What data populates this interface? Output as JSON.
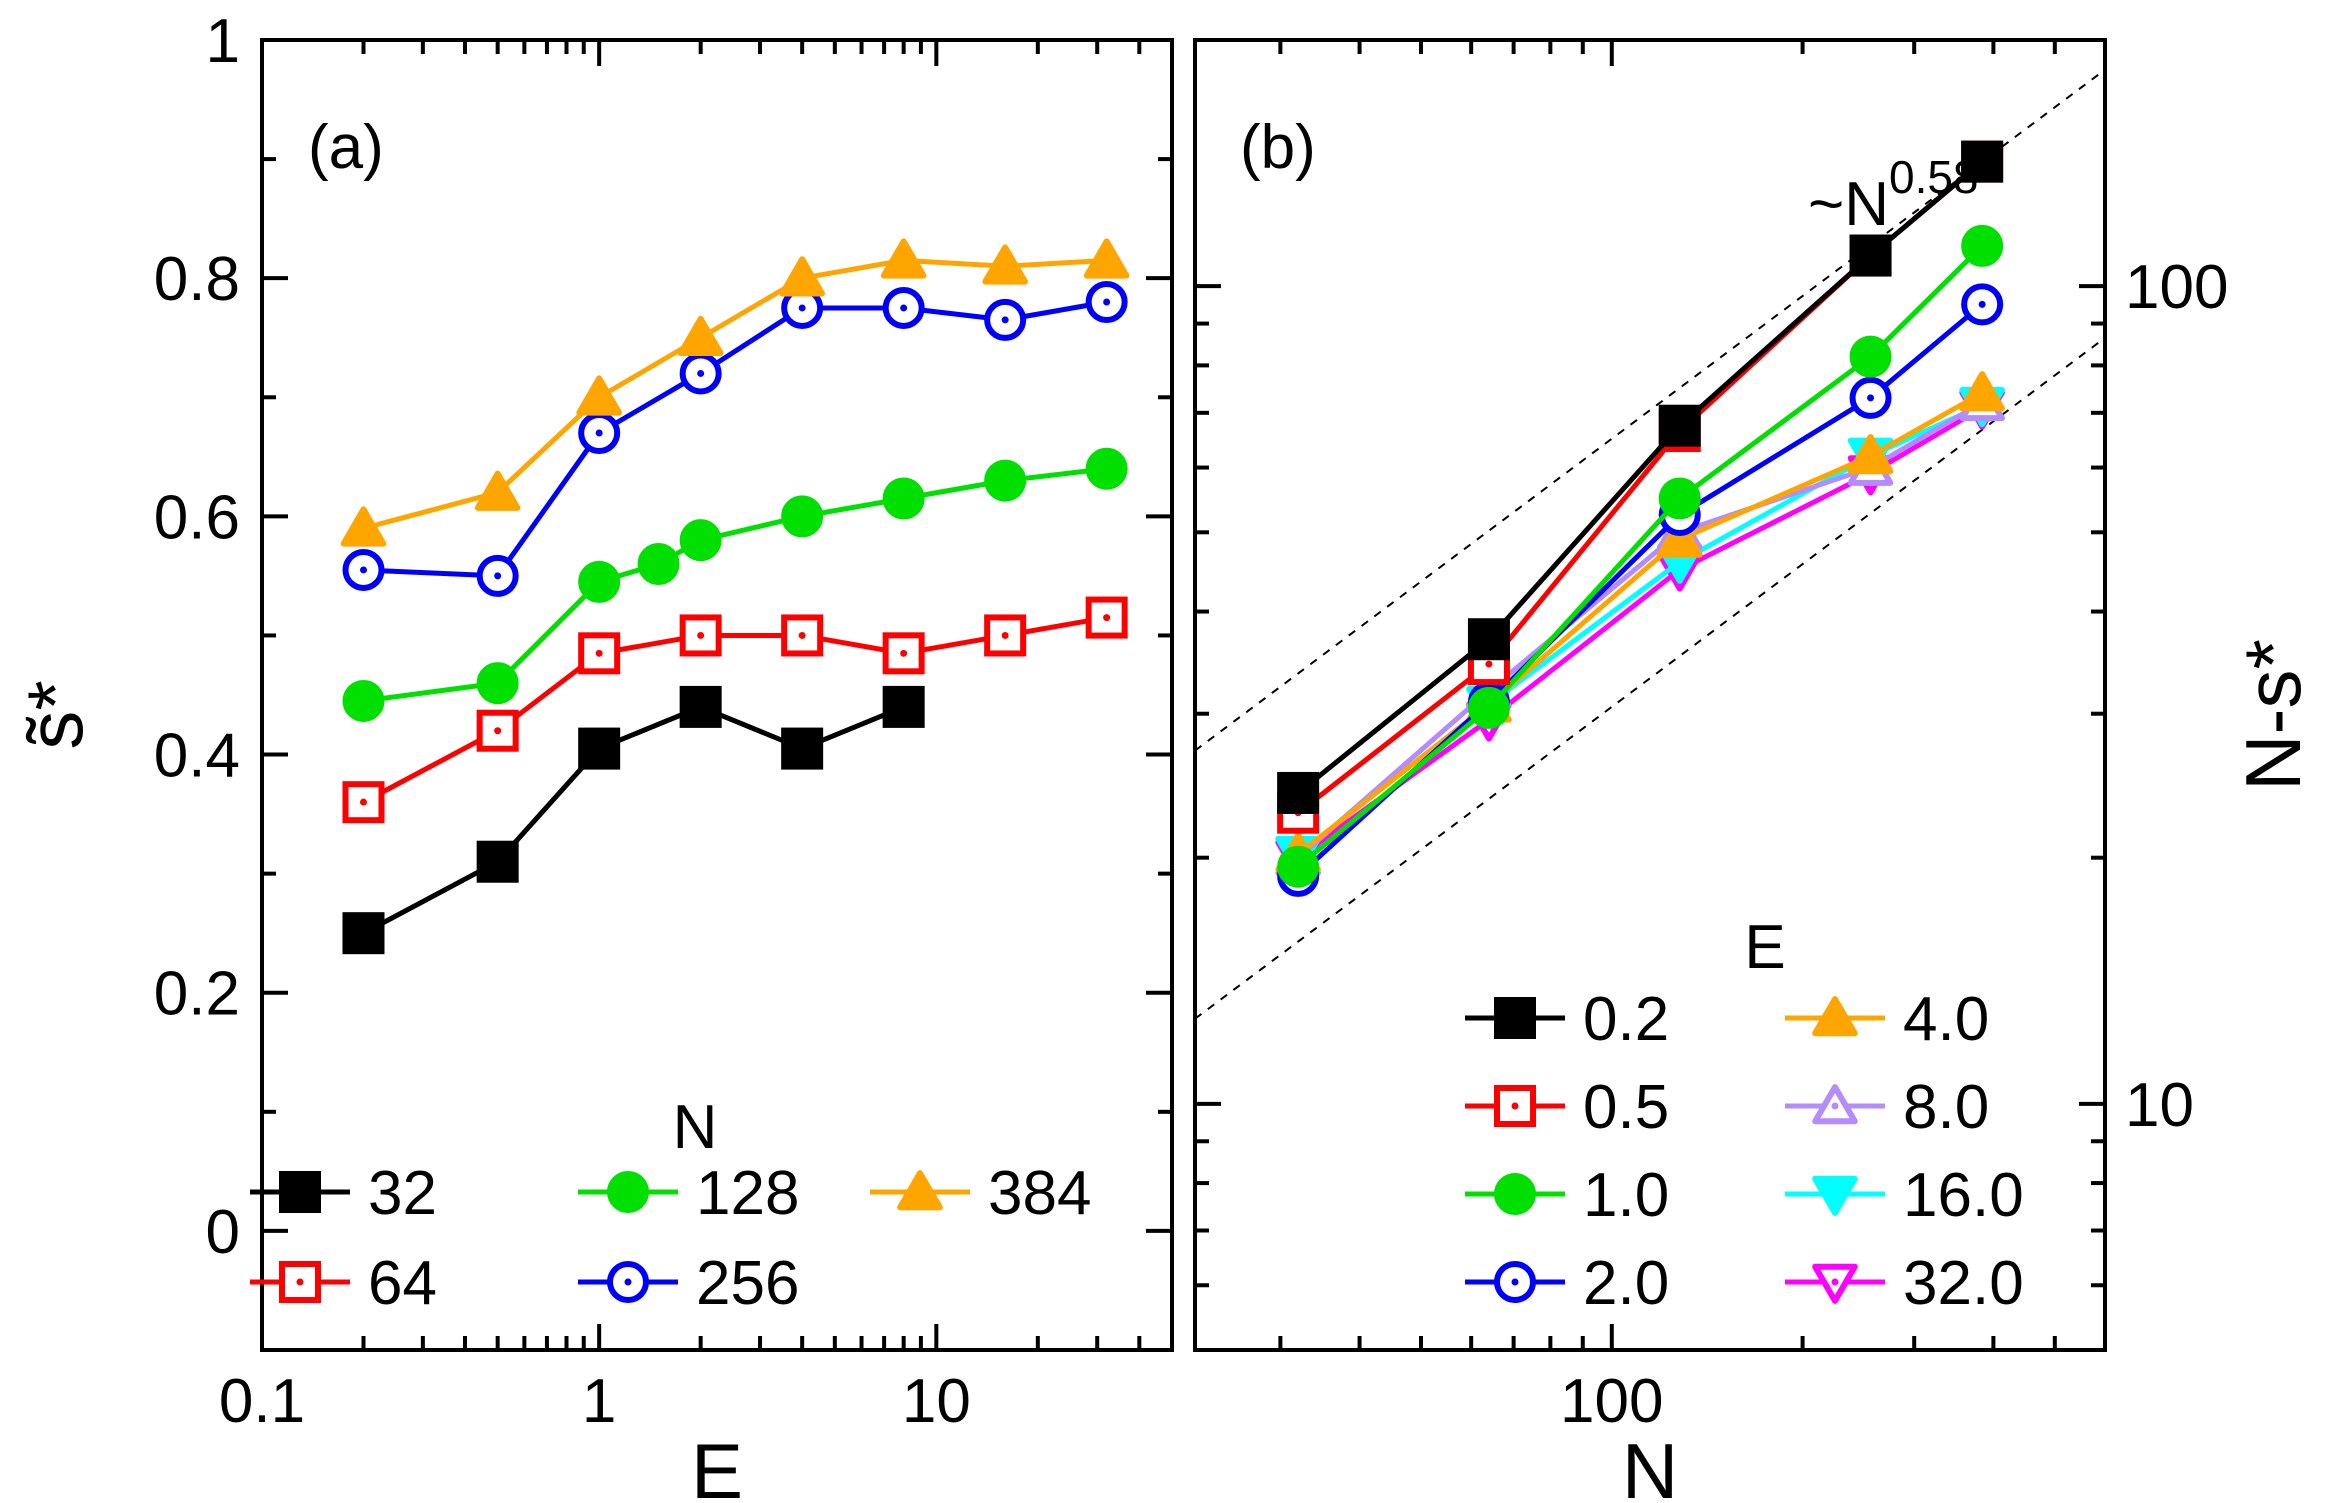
{
  "chart_data": [
    {
      "type": "line",
      "panel_label": "(a)",
      "xlabel": "E",
      "ylabel": "s̃*",
      "x_scale": "log",
      "xlim": [
        0.1,
        50
      ],
      "ylim": [
        -0.1,
        1.0
      ],
      "x_ticks": [
        "0.1",
        "1",
        "10"
      ],
      "y_ticks": [
        "0",
        "0.2",
        "0.4",
        "0.6",
        "0.8",
        "1"
      ],
      "legend_title": "N",
      "legend_position": "bottom-left",
      "series": [
        {
          "name": "32",
          "color": "#000000",
          "marker": "filled-square",
          "x": [
            0.2,
            0.5,
            1,
            2,
            4,
            8
          ],
          "y": [
            0.25,
            0.31,
            0.405,
            0.44,
            0.405,
            0.44
          ]
        },
        {
          "name": "64",
          "color": "#ff0000",
          "marker": "open-square-dot",
          "x": [
            0.2,
            0.5,
            1,
            2,
            4,
            8,
            16,
            32
          ],
          "y": [
            0.36,
            0.42,
            0.485,
            0.5,
            0.5,
            0.485,
            0.5,
            0.515
          ]
        },
        {
          "name": "128",
          "color": "#00e000",
          "marker": "filled-circle",
          "x": [
            0.2,
            0.5,
            1,
            1.5,
            2,
            4,
            8,
            16,
            32
          ],
          "y": [
            0.445,
            0.46,
            0.545,
            0.56,
            0.58,
            0.6,
            0.615,
            0.63,
            0.64
          ]
        },
        {
          "name": "256",
          "color": "#0000ff",
          "marker": "open-circle-dot",
          "x": [
            0.2,
            0.5,
            1,
            2,
            4,
            8,
            16,
            32
          ],
          "y": [
            0.555,
            0.55,
            0.67,
            0.72,
            0.775,
            0.775,
            0.765,
            0.78
          ]
        },
        {
          "name": "384",
          "color": "#ffa500",
          "marker": "filled-triangle",
          "x": [
            0.2,
            0.5,
            1,
            2,
            4,
            8,
            16,
            32
          ],
          "y": [
            0.59,
            0.62,
            0.7,
            0.75,
            0.8,
            0.815,
            0.81,
            0.815
          ]
        }
      ]
    },
    {
      "type": "line",
      "panel_label": "(b)",
      "xlabel": "N",
      "ylabel": "N-s*",
      "x_scale": "log",
      "y_scale": "log",
      "xlim": [
        22,
        600
      ],
      "ylim": [
        5,
        200
      ],
      "x_ticks": [
        "100"
      ],
      "y_ticks": [
        "10",
        "100"
      ],
      "y_axis_side": "right",
      "annotation": "~N",
      "annotation_exponent": "0.58",
      "guide_lines_slope": 0.58,
      "legend_title": "E",
      "legend_position": "bottom-right",
      "series": [
        {
          "name": "0.2",
          "color": "#000000",
          "marker": "filled-square",
          "x": [
            32,
            64,
            128,
            256,
            384
          ],
          "y": [
            24,
            37,
            67.5,
            109,
            142
          ]
        },
        {
          "name": "0.5",
          "color": "#ff0000",
          "marker": "open-square-dot",
          "x": [
            32,
            64,
            128,
            256,
            384
          ],
          "y": [
            22.7,
            34.5,
            66.5,
            109,
            142
          ]
        },
        {
          "name": "1.0",
          "color": "#00e000",
          "marker": "filled-circle",
          "x": [
            32,
            64,
            128,
            256,
            384
          ],
          "y": [
            19.5,
            30.5,
            55,
            82,
            112
          ]
        },
        {
          "name": "2.0",
          "color": "#0000ff",
          "marker": "open-circle-dot",
          "x": [
            32,
            64,
            128,
            256,
            384
          ],
          "y": [
            19,
            31,
            52.5,
            73,
            95
          ]
        },
        {
          "name": "4.0",
          "color": "#ffa500",
          "marker": "filled-triangle",
          "x": [
            32,
            64,
            128,
            256,
            384
          ],
          "y": [
            20.2,
            30.8,
            49,
            62,
            74
          ]
        },
        {
          "name": "8.0",
          "color": "#b48cff",
          "marker": "open-triangle-dot",
          "x": [
            32,
            64,
            128,
            256,
            384
          ],
          "y": [
            20,
            32,
            50,
            60,
            72
          ]
        },
        {
          "name": "16.0",
          "color": "#00ffff",
          "marker": "filled-triangle-down",
          "x": [
            32,
            64,
            128,
            256,
            384
          ],
          "y": [
            20.2,
            30.8,
            46,
            62,
            71.5
          ]
        },
        {
          "name": "32.0",
          "color": "#ff00ff",
          "marker": "open-triangle-down-dot",
          "x": [
            32,
            64,
            128,
            256,
            384
          ],
          "y": [
            20,
            29.5,
            45,
            59,
            71
          ]
        }
      ]
    }
  ]
}
